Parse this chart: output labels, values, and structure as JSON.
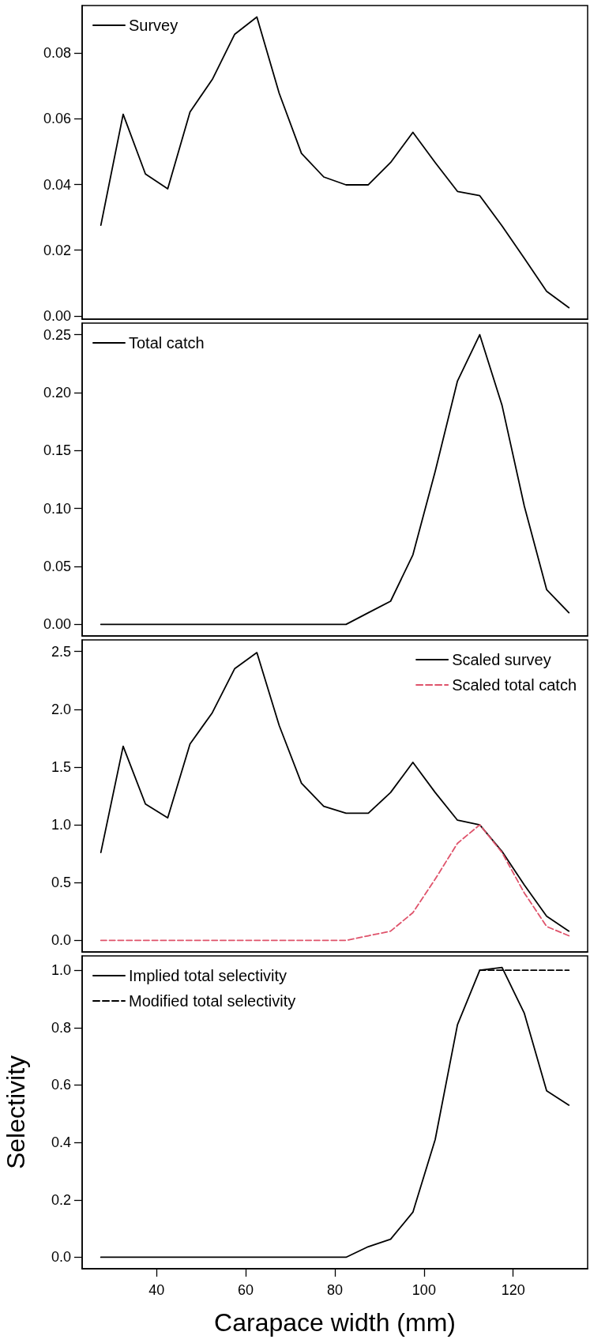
{
  "chart_data": [
    {
      "type": "line",
      "x": [
        27.5,
        32.5,
        37.5,
        42.5,
        47.5,
        52.5,
        57.5,
        62.5,
        67.5,
        72.5,
        77.5,
        82.5,
        87.5,
        92.5,
        97.5,
        102.5,
        107.5,
        112.5,
        117.5,
        122.5,
        127.5,
        132.5
      ],
      "series": [
        {
          "name": "Survey",
          "color": "#000000",
          "line_style": "solid",
          "values": [
            0.0276,
            0.0614,
            0.0432,
            0.0387,
            0.0621,
            0.072,
            0.0857,
            0.091,
            0.0678,
            0.0495,
            0.0423,
            0.0399,
            0.0399,
            0.0467,
            0.0559,
            0.0467,
            0.0379,
            0.0366,
            0.0274,
            0.0175,
            0.0075,
            0.0025
          ]
        }
      ],
      "xlim": [
        23.3,
        136.7
      ],
      "ylim": [
        -0.001,
        0.0945
      ],
      "yticks": [
        {
          "value": 0,
          "label": "0.00"
        },
        0.02,
        0.04,
        0.06,
        0.08
      ],
      "tick_labels": "y",
      "legend": "top left"
    },
    {
      "type": "line",
      "x": [
        27.5,
        32.5,
        37.5,
        42.5,
        47.5,
        52.5,
        57.5,
        62.5,
        67.5,
        72.5,
        77.5,
        82.5,
        87.5,
        92.5,
        97.5,
        102.5,
        107.5,
        112.5,
        117.5,
        122.5,
        127.5,
        132.5
      ],
      "series": [
        {
          "name": "Total catch",
          "color": "#000000",
          "line_style": "solid",
          "values": [
            0,
            0,
            0,
            0,
            0,
            0,
            0,
            0,
            0,
            0,
            0,
            0,
            0.01,
            0.02,
            0.06,
            0.132,
            0.21,
            0.25,
            0.189,
            0.102,
            0.03,
            0.01
          ]
        }
      ],
      "xlim": [
        23.3,
        136.7
      ],
      "ylim": [
        -0.01,
        0.26
      ],
      "yticks": [
        {
          "value": 0,
          "label": "0.00"
        },
        0.05,
        {
          "value": 0.1,
          "label": "0.10"
        },
        0.15,
        {
          "value": 0.2,
          "label": "0.20"
        },
        0.25
      ],
      "tick_labels": "y",
      "legend": "top left"
    },
    {
      "type": "line",
      "x": [
        27.5,
        32.5,
        37.5,
        42.5,
        47.5,
        52.5,
        57.5,
        62.5,
        67.5,
        72.5,
        77.5,
        82.5,
        87.5,
        92.5,
        97.5,
        102.5,
        107.5,
        112.5,
        117.5,
        122.5,
        127.5,
        132.5
      ],
      "series": [
        {
          "name": "Scaled survey",
          "color": "#000000",
          "line_style": "solid",
          "values": [
            0.76,
            1.68,
            1.18,
            1.06,
            1.7,
            1.97,
            2.35,
            2.49,
            1.86,
            1.36,
            1.16,
            1.1,
            1.1,
            1.28,
            1.54,
            1.28,
            1.04,
            1.0,
            0.77,
            0.48,
            0.21,
            0.08
          ]
        },
        {
          "name": "Scaled total catch",
          "color": "#df536b",
          "line_style": "dashed",
          "values": [
            0,
            0,
            0,
            0,
            0,
            0,
            0,
            0,
            0,
            0,
            0,
            0,
            0.04,
            0.08,
            0.24,
            0.53,
            0.84,
            1.0,
            0.76,
            0.41,
            0.12,
            0.04
          ]
        }
      ],
      "xlim": [
        23.3,
        136.7
      ],
      "ylim": [
        -0.1,
        2.6
      ],
      "yticks": [
        {
          "value": 0,
          "label": "0.0"
        },
        0.5,
        {
          "value": 1,
          "label": "1.0"
        },
        1.5,
        {
          "value": 2,
          "label": "2.0"
        },
        2.5
      ],
      "tick_labels": "y",
      "legend": "top right"
    },
    {
      "type": "line",
      "xlabel": "Carapace width (mm)",
      "ylabel": "Selectivity",
      "x": [
        27.5,
        32.5,
        37.5,
        42.5,
        47.5,
        52.5,
        57.5,
        62.5,
        67.5,
        72.5,
        77.5,
        82.5,
        87.5,
        92.5,
        97.5,
        102.5,
        107.5,
        112.5,
        117.5,
        122.5,
        127.5,
        132.5
      ],
      "series": [
        {
          "name": "Implied total selectivity",
          "color": "#000000",
          "line_style": "solid",
          "values": [
            0,
            0,
            0,
            0,
            0,
            0,
            0,
            0,
            0,
            0,
            0,
            0,
            0.037,
            0.063,
            0.157,
            0.41,
            0.81,
            1.0,
            1.01,
            0.85,
            0.58,
            0.53
          ]
        },
        {
          "name": "Modified total selectivity",
          "color": "#000000",
          "line_style": "dashed",
          "values": [
            null,
            null,
            null,
            null,
            null,
            null,
            null,
            null,
            null,
            null,
            null,
            null,
            null,
            null,
            null,
            null,
            null,
            1.0,
            1.0,
            1.0,
            1.0,
            1.0
          ]
        }
      ],
      "xlim": [
        23.3,
        136.7
      ],
      "xticks": [
        40,
        60,
        80,
        100,
        120
      ],
      "ylim": [
        -0.04,
        1.05
      ],
      "yticks": [
        {
          "value": 0,
          "label": "0.0"
        },
        0.2,
        0.4,
        0.6,
        0.8,
        {
          "value": 1,
          "label": "1.0"
        }
      ],
      "legend": "top left"
    }
  ]
}
